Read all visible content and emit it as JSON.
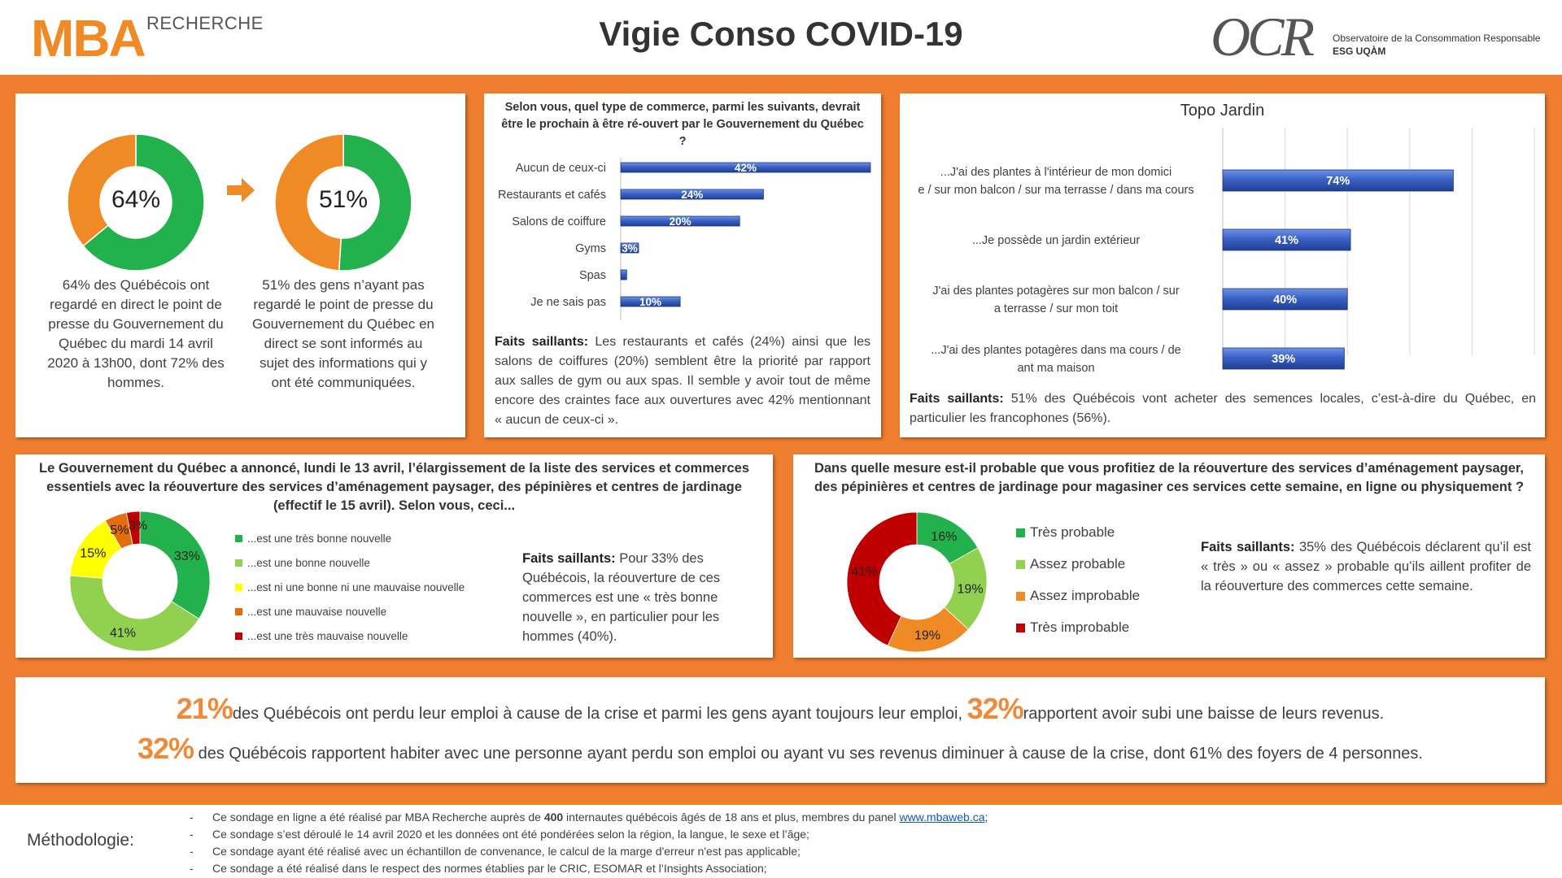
{
  "header": {
    "logo_left_main": "MBA",
    "logo_left_sub": "RECHERCHE",
    "title": "Vigie Conso COVID-19",
    "logo_right_main": "OCR",
    "logo_right_line1": "Observatoire de la Consommation Responsable",
    "logo_right_line2": "ESG UQÀM"
  },
  "colors": {
    "orange": "#ef7f2f",
    "green": "#22b14c",
    "light_green": "#92d050",
    "yellow": "#ffff00",
    "dark_orange": "#e46c0a",
    "dark_red": "#c00000",
    "bar_blue": "#3a62c4"
  },
  "panel1": {
    "donut1_label": "64%",
    "donut1_caption": "64% des Québécois ont regardé en direct le point de presse du Gouvernement du Québec du mardi 14 avril 2020 à 13h00, dont 72% des hommes.",
    "donut2_label": "51%",
    "donut2_caption": "51% des gens n’ayant pas regardé le point de presse du Gouvernement du Québec en direct se sont informés au sujet des informations qui y ont été communiquées.",
    "arrow_icon": "arrow-right-icon"
  },
  "panel2": {
    "question": "Selon vous, quel type de commerce, parmi les suivants, devrait être le prochain à être ré-ouvert par le Gouvernement du Québec ?",
    "faits_label": "Faits saillants:",
    "faits_text": " Les restaurants et cafés (24%) ainsi que les salons de coiffures (20%) semblent être la priorité par rapport aux salles de gym ou aux spas. Il semble y avoir tout de même encore des craintes face aux ouvertures avec 42% mentionnant « aucun de ceux-ci »."
  },
  "panel3": {
    "title": "Topo Jardin",
    "faits_label": "Faits saillants:",
    "faits_text": " 51% des Québécois vont acheter des semences locales, c’est-à-dire du Québec, en particulier les francophones (56%)."
  },
  "panel4": {
    "question": "Le Gouvernement du Québec a annoncé, lundi le 13 avril, l’élargissement de la liste des services et commerces essentiels avec la réouverture des services d’aménagement paysager, des pépinières et centres de jardinage (effectif le 15 avril). Selon vous, ceci...",
    "faits_label": "Faits saillants:",
    "faits_text": " Pour 33% des Québécois, la réouverture de ces commerces est une « très bonne nouvelle », en particulier pour les hommes (40%)."
  },
  "panel5": {
    "question": "Dans quelle mesure est-il probable que vous profitiez de la réouverture des services d’aménagement paysager, des pépinières et centres de jardinage pour magasiner ces services cette semaine, en ligne ou physiquement ?",
    "faits_label": "Faits saillants:",
    "faits_text": " 35% des Québécois déclarent qu’il est « très » ou « assez » probable qu’ils aillent profiter de la réouverture des commerces cette semaine."
  },
  "panel6": {
    "line1_big1": "21%",
    "line1_text1": "des Québécois ont perdu leur emploi à cause de la crise et parmi les gens ayant toujours leur emploi, ",
    "line1_big2": "32%",
    "line1_text2": "rapportent avoir subi une baisse de leurs revenus.",
    "line2_big": "32%",
    "line2_text": " des Québécois rapportent habiter avec une personne ayant perdu son emploi ou ayant vu ses revenus diminuer à cause de la crise, dont 61% des foyers de 4 personnes."
  },
  "footer": {
    "label": "Méthodologie:",
    "dash": "-",
    "line1_a": "Ce sondage en ligne a été réalisé par MBA Recherche auprès de ",
    "line1_b": "400",
    "line1_c": " internautes québécois âgés de 18 ans et plus, membres du panel ",
    "line1_link": "www.mbaweb.ca",
    "line1_d": ";",
    "line2": "Ce sondage s’est déroulé le 14 avril 2020 et les données ont été pondérées selon la région, la langue, le sexe et l’âge;",
    "line3": "Ce sondage ayant été réalisé avec un échantillon de convenance, le calcul de la marge d'erreur n'est pas applicable;",
    "line4": "Ce sondage a été réalisé dans le respect des normes établies par le CRIC, ESOMAR et l’Insights Association;"
  },
  "chart_data": [
    {
      "id": "donut-watched",
      "type": "pie",
      "categories": [
        "",
        ""
      ],
      "values": [
        64,
        36
      ],
      "colors": [
        "#22b14c",
        "#f08a24"
      ],
      "center_label": "64%"
    },
    {
      "id": "donut-informed",
      "type": "pie",
      "categories": [
        "",
        ""
      ],
      "values": [
        51,
        49
      ],
      "colors": [
        "#22b14c",
        "#f08a24"
      ],
      "center_label": "51%"
    },
    {
      "id": "bar-commerce",
      "type": "bar",
      "orientation": "horizontal",
      "categories": [
        "Aucun de ceux-ci",
        "Restaurants et cafés",
        "Salons de coiffure",
        "Gyms",
        "Spas",
        "Je ne sais pas"
      ],
      "values": [
        42,
        24,
        20,
        3,
        1,
        10
      ],
      "labels": [
        "42%",
        "24%",
        "20%",
        "3%",
        "",
        "10%"
      ],
      "xlim": [
        0,
        42
      ]
    },
    {
      "id": "bar-jardin",
      "type": "bar",
      "orientation": "horizontal",
      "categories": [
        "...J'ai des plantes à l'intérieur de mon domicile / sur mon balcon / sur ma terrasse  / dans ma cours",
        "...Je possède un jardin extérieur",
        "J'ai des plantes potagères sur mon balcon / sur ma terrasse / sur mon toit",
        "...J'ai des plantes potagères dans ma cours / devant ma maison"
      ],
      "values": [
        74,
        41,
        40,
        39
      ],
      "labels": [
        "74%",
        "41%",
        "40%",
        "39%"
      ],
      "xlim": [
        0,
        100
      ],
      "grid": true
    },
    {
      "id": "donut-nouvelle",
      "type": "pie",
      "categories": [
        "...est une très bonne nouvelle",
        "...est une bonne nouvelle",
        "...est ni une bonne ni une mauvaise nouvelle",
        "...est une mauvaise nouvelle",
        "...est une très mauvaise nouvelle"
      ],
      "values": [
        33,
        41,
        15,
        5,
        3
      ],
      "labels": [
        "33%",
        "41%",
        "15%",
        "5%",
        "3%"
      ],
      "colors": [
        "#22b14c",
        "#92d050",
        "#ffff00",
        "#e46c0a",
        "#c00000"
      ],
      "legend": "right"
    },
    {
      "id": "donut-probable",
      "type": "pie",
      "categories": [
        "Très probable",
        "Assez probable",
        "Assez improbable",
        "Très improbable"
      ],
      "values": [
        16,
        19,
        19,
        41
      ],
      "labels": [
        "16%",
        "19%",
        "19%",
        "41%"
      ],
      "colors": [
        "#22b14c",
        "#92d050",
        "#f08a24",
        "#c00000"
      ],
      "legend": "right"
    }
  ]
}
